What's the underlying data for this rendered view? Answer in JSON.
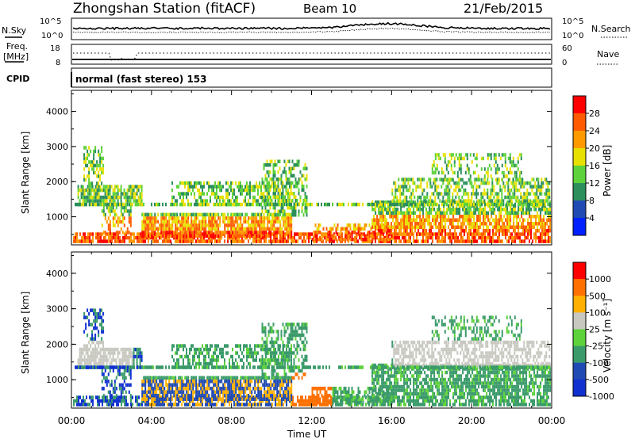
{
  "header": {
    "title": "Zhongshan Station (fitACF)",
    "beam": "Beam 10",
    "date": "21/Feb/2015"
  },
  "noise_panel": {
    "left_label": "N.Sky",
    "left_ticks": [
      "10^5",
      "10^0"
    ],
    "right_ticks": [
      "10^5",
      "10^0"
    ],
    "right_label": "N.Search"
  },
  "freq_panel": {
    "left_label_1": "Freq.",
    "left_label_2": "[MHz]",
    "left_ticks": [
      "18",
      "8"
    ],
    "right_ticks": [
      "60",
      "0"
    ],
    "right_label": "Nave"
  },
  "cpid": {
    "label": "CPID",
    "value": "normal (fast stereo) 153"
  },
  "chart_data": [
    {
      "type": "heatmap",
      "name": "power",
      "ylabel": "Slant Range [km]",
      "x_ticks": [
        "00:00",
        "04:00",
        "08:00",
        "12:00",
        "16:00",
        "20:00",
        "00:00"
      ],
      "y_ticks": [
        "1000",
        "2000",
        "3000",
        "4000"
      ],
      "ylim": [
        200,
        4600
      ],
      "colorbar_label": "Power [dB]",
      "colorbar_ticks": [
        "28",
        "24",
        "20",
        "16",
        "12",
        "8",
        "4"
      ],
      "colors": [
        "#0020ff",
        "#1f4ab4",
        "#2c8f5c",
        "#5dd23a",
        "#e8e000",
        "#ff9a00",
        "#ff5a00",
        "#ff0000"
      ]
    },
    {
      "type": "heatmap",
      "name": "velocity",
      "ylabel": "Slant Range [km]",
      "x_ticks": [
        "00:00",
        "04:00",
        "08:00",
        "12:00",
        "16:00",
        "20:00",
        "00:00"
      ],
      "y_ticks": [
        "1000",
        "2000",
        "3000",
        "4000"
      ],
      "ylim": [
        200,
        4600
      ],
      "xlabel": "Time UT",
      "colorbar_label": "Velocity [m s⁻¹]",
      "colorbar_ticks": [
        "1000",
        "500",
        "100",
        "25",
        "-25",
        "-100",
        "-500",
        "-1000"
      ],
      "colors": [
        "#1030d0",
        "#1f4ab4",
        "#3a9a6a",
        "#5dd23a",
        "#c8c8c0",
        "#ffb000",
        "#ff7000",
        "#ff0000"
      ]
    }
  ]
}
